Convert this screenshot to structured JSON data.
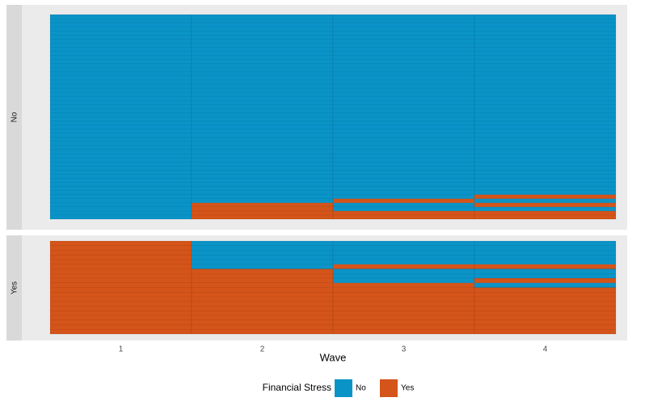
{
  "chart_data": {
    "type": "tile",
    "categories": [
      "1",
      "2",
      "3",
      "4"
    ],
    "x_label": "Wave",
    "legend_title": "Financial Stress",
    "series": [
      {
        "name": "No",
        "color": "#0a93c7"
      },
      {
        "name": "Yes",
        "color": "#d4541a"
      }
    ],
    "facets": [
      {
        "label": "No",
        "columns": [
          [
            {
              "state": "No",
              "count": 50
            }
          ],
          [
            {
              "state": "Yes",
              "count": 4
            },
            {
              "state": "No",
              "count": 46
            }
          ],
          [
            {
              "state": "Yes",
              "count": 2
            },
            {
              "state": "No",
              "count": 2
            },
            {
              "state": "Yes",
              "count": 1
            },
            {
              "state": "No",
              "count": 45
            }
          ],
          [
            {
              "state": "Yes",
              "count": 2
            },
            {
              "state": "No",
              "count": 1
            },
            {
              "state": "Yes",
              "count": 1
            },
            {
              "state": "No",
              "count": 1
            },
            {
              "state": "Yes",
              "count": 1
            },
            {
              "state": "No",
              "count": 44
            }
          ]
        ]
      },
      {
        "label": "Yes",
        "columns": [
          [
            {
              "state": "Yes",
              "count": 20
            }
          ],
          [
            {
              "state": "Yes",
              "count": 14
            },
            {
              "state": "No",
              "count": 6
            }
          ],
          [
            {
              "state": "Yes",
              "count": 11
            },
            {
              "state": "No",
              "count": 3
            },
            {
              "state": "Yes",
              "count": 1
            },
            {
              "state": "No",
              "count": 5
            }
          ],
          [
            {
              "state": "Yes",
              "count": 10
            },
            {
              "state": "No",
              "count": 1
            },
            {
              "state": "Yes",
              "count": 1
            },
            {
              "state": "No",
              "count": 2
            },
            {
              "state": "Yes",
              "count": 1
            },
            {
              "state": "No",
              "count": 5
            }
          ]
        ]
      }
    ]
  }
}
